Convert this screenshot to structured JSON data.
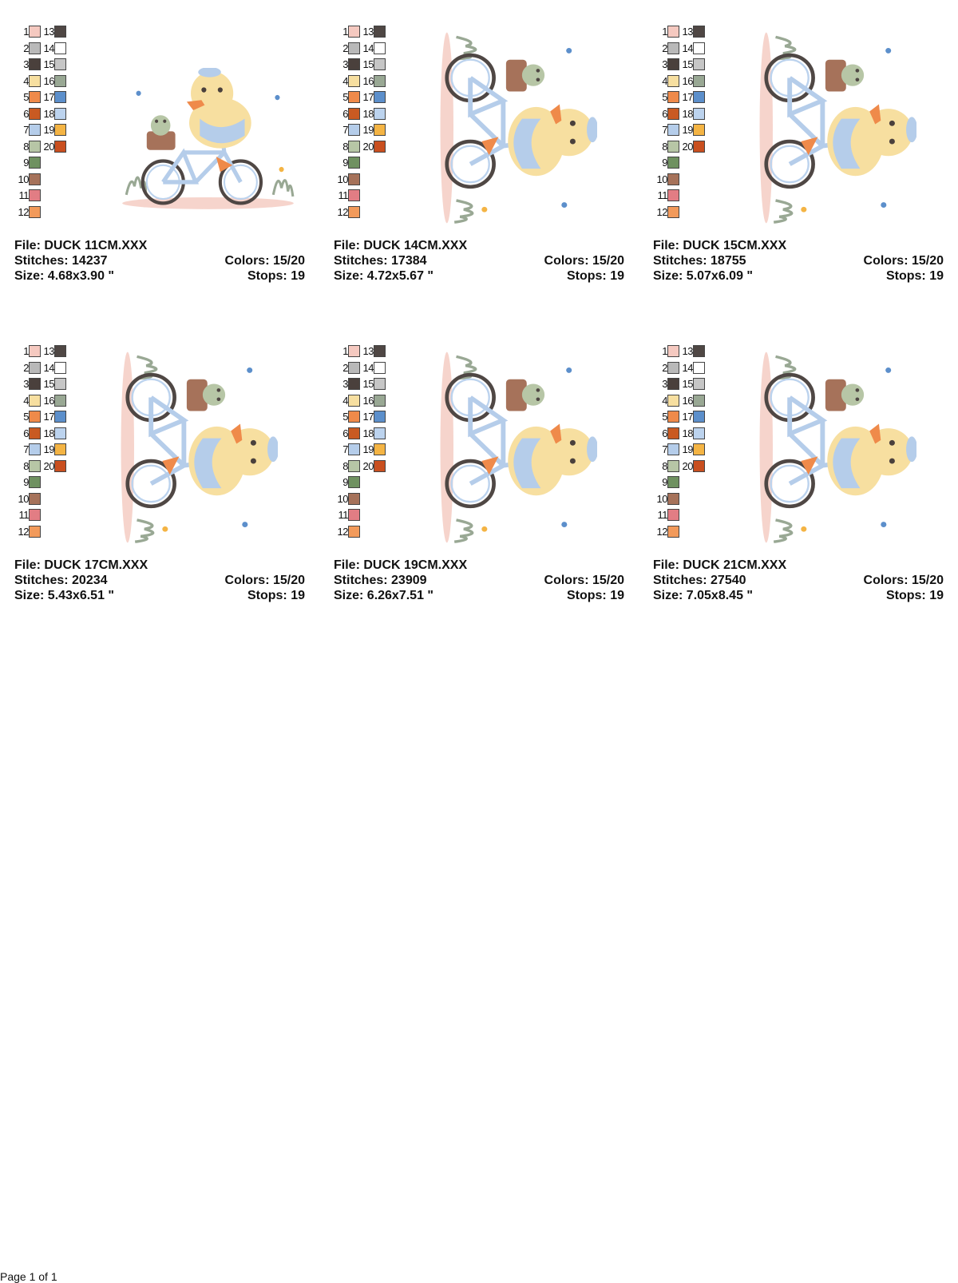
{
  "palette": [
    {
      "n": "1",
      "color": "#f5c9c0"
    },
    {
      "n": "2",
      "color": "#b9b9b9"
    },
    {
      "n": "3",
      "color": "#4a403c"
    },
    {
      "n": "4",
      "color": "#f7dfa0"
    },
    {
      "n": "5",
      "color": "#ef8a4a"
    },
    {
      "n": "6",
      "color": "#c95a22"
    },
    {
      "n": "7",
      "color": "#b5cdea"
    },
    {
      "n": "8",
      "color": "#b7c6a6"
    },
    {
      "n": "9",
      "color": "#6f9160"
    },
    {
      "n": "10",
      "color": "#a6725a"
    },
    {
      "n": "11",
      "color": "#e27d84"
    },
    {
      "n": "12",
      "color": "#f29a5b"
    },
    {
      "n": "13",
      "color": "#4f4744"
    },
    {
      "n": "14",
      "color": "#ffffff"
    },
    {
      "n": "15",
      "color": "#c6c6c6"
    },
    {
      "n": "16",
      "color": "#99a894"
    },
    {
      "n": "17",
      "color": "#5c8fcb"
    },
    {
      "n": "18",
      "color": "#bcd3ee"
    },
    {
      "n": "19",
      "color": "#f4b444"
    },
    {
      "n": "20",
      "color": "#c94f1f"
    }
  ],
  "designs": [
    {
      "file": "File: DUCK 11CM.XXX",
      "stitches": "Stitches: 14237",
      "colors": "Colors: 15/20",
      "size": "Size: 4.68x3.90 \"",
      "stops": "Stops: 19"
    },
    {
      "file": "File: DUCK 14CM.XXX",
      "stitches": "Stitches: 17384",
      "colors": "Colors: 15/20",
      "size": "Size: 4.72x5.67 \"",
      "stops": "Stops: 19"
    },
    {
      "file": "File: DUCK 15CM.XXX",
      "stitches": "Stitches: 18755",
      "colors": "Colors: 15/20",
      "size": "Size: 5.07x6.09 \"",
      "stops": "Stops: 19"
    },
    {
      "file": "File: DUCK 17CM.XXX",
      "stitches": "Stitches: 20234",
      "colors": "Colors: 15/20",
      "size": "Size: 5.43x6.51 \"",
      "stops": "Stops: 19"
    },
    {
      "file": "File: DUCK 19CM.XXX",
      "stitches": "Stitches: 23909",
      "colors": "Colors: 15/20",
      "size": "Size: 6.26x7.51 \"",
      "stops": "Stops: 19"
    },
    {
      "file": "File: DUCK 21CM.XXX",
      "stitches": "Stitches: 27540",
      "colors": "Colors: 15/20",
      "size": "Size: 7.05x8.45 \"",
      "stops": "Stops: 19"
    }
  ],
  "footer": "Page 1 of 1"
}
